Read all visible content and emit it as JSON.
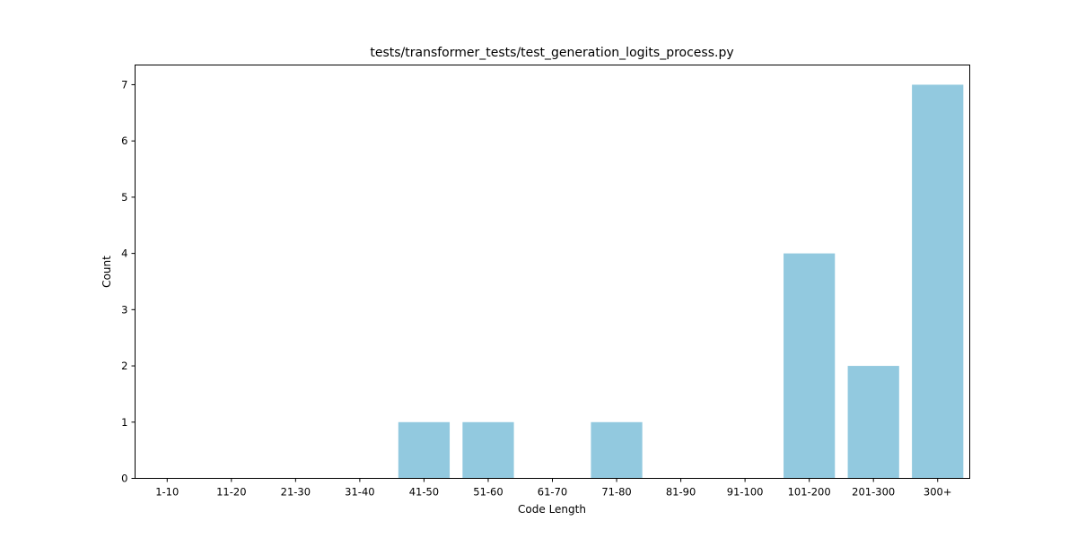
{
  "chart_data": {
    "type": "bar",
    "title": "tests/transformer_tests/test_generation_logits_process.py",
    "xlabel": "Code Length",
    "ylabel": "Count",
    "categories": [
      "1-10",
      "11-20",
      "21-30",
      "31-40",
      "41-50",
      "51-60",
      "61-70",
      "71-80",
      "81-90",
      "91-100",
      "101-200",
      "201-300",
      "300+"
    ],
    "values": [
      0,
      0,
      0,
      0,
      1,
      1,
      0,
      1,
      0,
      0,
      4,
      2,
      7
    ],
    "ylim": [
      0,
      7.35
    ],
    "yticks": [
      0,
      1,
      2,
      3,
      4,
      5,
      6,
      7
    ],
    "bar_color": "#92c9df",
    "grid": false,
    "legend": "none"
  }
}
